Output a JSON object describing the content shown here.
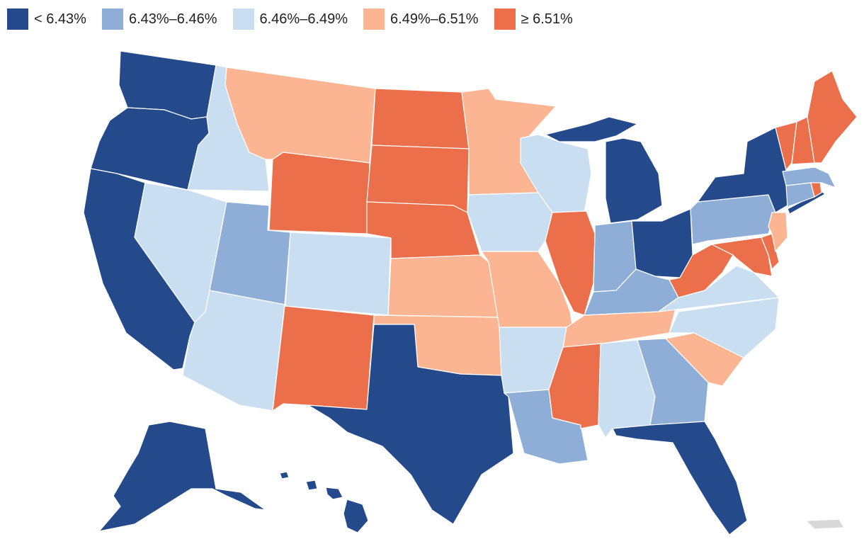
{
  "legend": [
    {
      "label": "< 6.43%",
      "color": "#244a8b"
    },
    {
      "label": "6.43%–6.46%",
      "color": "#8eaed7"
    },
    {
      "label": "6.46%–6.49%",
      "color": "#c9def0"
    },
    {
      "label": "6.49%–6.51%",
      "color": "#fbb592"
    },
    {
      "label": "≥ 6.51%",
      "color": "#eb6f4b"
    }
  ],
  "states": {
    "WA": 0,
    "OR": 0,
    "CA": 0,
    "ID": 2,
    "NV": 2,
    "MT": 3,
    "WY": 4,
    "UT": 1,
    "AZ": 2,
    "CO": 2,
    "NM": 4,
    "ND": 4,
    "SD": 4,
    "NE": 4,
    "KS": 3,
    "OK": 3,
    "TX": 0,
    "MN": 3,
    "IA": 2,
    "MO": 3,
    "AR": 2,
    "LA": 1,
    "WI": 2,
    "IL": 4,
    "MI": 0,
    "IN": 1,
    "OH": 0,
    "KY": 1,
    "TN": 3,
    "MS": 4,
    "AL": 2,
    "GA": 1,
    "FL": 0,
    "SC": 3,
    "NC": 2,
    "VA": 2,
    "WV": 4,
    "MD": 4,
    "DE": 4,
    "PA": 1,
    "NJ": 3,
    "NY": 0,
    "CT": 1,
    "RI": 4,
    "MA": 1,
    "VT": 4,
    "NH": 4,
    "ME": 4,
    "AK": 0,
    "HI": 0,
    "PR": null
  },
  "no_data_color": "#d9d9d9"
}
